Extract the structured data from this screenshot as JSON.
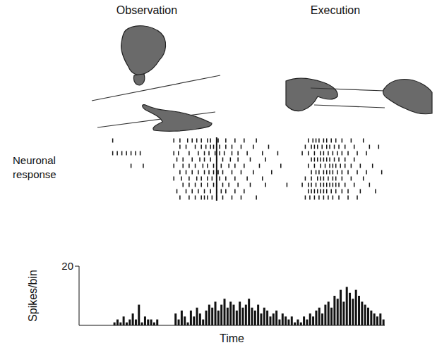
{
  "panel_titles": [
    "Observation",
    "Execution"
  ],
  "row_label": "Neuronal response",
  "chart_data": {
    "type": "histogram",
    "x_label": "Time",
    "y_label": "Spikes/bin",
    "bins": [
      0,
      1,
      2,
      3,
      4,
      5,
      6,
      7,
      8,
      9,
      10,
      11,
      12,
      13,
      14,
      15,
      16,
      17,
      18,
      19,
      20,
      21,
      22,
      23,
      24,
      25,
      26,
      27,
      28,
      29,
      30,
      31,
      32,
      33,
      34,
      35,
      36,
      37,
      38,
      39,
      40,
      41,
      42,
      43,
      44,
      45,
      46,
      47,
      48,
      49,
      50,
      51,
      52,
      53,
      54,
      55,
      56,
      57,
      58,
      59,
      60,
      61,
      62,
      63,
      64,
      65,
      66,
      67,
      68,
      69,
      70,
      71,
      72,
      73,
      74,
      75,
      76,
      77,
      78,
      79,
      80,
      81,
      82,
      83,
      84,
      85,
      86,
      87,
      88,
      89,
      90,
      91,
      92,
      93,
      94,
      95,
      96,
      97,
      98,
      99,
      100
    ],
    "values": [
      0,
      0,
      0,
      0,
      0,
      0,
      0,
      0,
      0,
      0,
      0,
      1,
      2,
      1,
      3,
      1,
      2,
      4,
      2,
      7,
      1,
      3,
      2,
      2,
      1,
      2,
      0,
      0,
      0,
      0,
      0,
      4,
      2,
      5,
      3,
      1,
      5,
      3,
      6,
      4,
      2,
      5,
      7,
      6,
      8,
      5,
      7,
      9,
      6,
      8,
      7,
      5,
      8,
      6,
      7,
      9,
      6,
      5,
      7,
      4,
      6,
      5,
      3,
      4,
      5,
      2,
      4,
      3,
      2,
      3,
      1,
      2,
      1,
      3,
      2,
      4,
      3,
      5,
      6,
      4,
      7,
      8,
      6,
      10,
      9,
      12,
      8,
      13,
      11,
      9,
      12,
      10,
      8,
      7,
      6,
      5,
      4,
      3,
      4,
      2
    ],
    "color": "#111111",
    "xlim": [
      0,
      100
    ],
    "ylim": [
      0,
      20
    ],
    "yticks": [
      20
    ],
    "tick_labels": "y",
    "event": 45,
    "raster": [
      [
        11,
        31,
        33,
        35.5,
        37,
        38.5,
        40,
        42,
        43,
        45.5,
        48,
        51,
        54,
        58,
        75,
        76.5,
        77.5,
        78.5,
        80,
        81,
        82.5,
        84,
        86,
        89,
        93
      ],
      [
        33,
        35,
        38,
        40,
        41.5,
        43,
        44,
        46,
        48,
        50,
        53,
        57,
        62,
        74,
        76,
        77,
        78,
        79.5,
        81,
        82,
        83.5,
        85,
        87,
        90,
        95,
        98
      ],
      [
        11,
        12.5,
        14,
        15.5,
        17,
        18.5,
        20,
        31,
        32.5,
        36,
        39,
        41,
        42.5,
        44.5,
        46,
        47.5,
        50,
        52,
        55,
        60,
        65,
        73,
        75,
        77,
        79,
        80,
        81.5,
        83,
        84.5,
        86,
        88,
        91,
        94
      ],
      [
        32,
        34,
        37,
        39.5,
        41,
        43,
        45,
        47,
        49.5,
        52,
        56,
        61,
        76,
        77,
        78,
        79,
        80,
        81,
        82,
        83.5,
        85,
        87,
        90
      ],
      [
        17,
        21,
        31,
        34,
        36,
        38,
        40.5,
        42,
        44,
        46.5,
        49,
        51,
        54,
        59,
        66,
        75,
        77,
        79,
        80.5,
        82,
        83,
        84,
        85.5,
        87,
        89,
        92,
        96
      ],
      [
        33,
        35,
        37,
        39,
        41,
        42.5,
        44,
        45.5,
        47,
        50,
        53,
        57,
        63,
        76,
        77.5,
        78.5,
        80,
        81,
        82,
        83,
        84.5,
        86,
        88,
        91,
        94,
        99
      ],
      [
        31,
        33.5,
        36,
        38.5,
        40,
        42,
        43.5,
        46,
        48,
        51,
        55,
        60,
        74,
        76,
        78,
        79,
        80,
        81.5,
        83,
        84,
        86,
        89,
        93
      ],
      [
        34,
        36,
        38,
        40,
        42,
        44,
        45,
        47,
        49,
        52,
        56,
        61,
        68,
        73,
        75,
        76,
        77.5,
        79,
        80,
        81,
        82,
        83,
        84,
        85,
        87,
        90,
        95
      ],
      [
        32,
        35,
        37,
        39,
        41,
        43,
        45,
        46.5,
        48,
        51,
        54,
        75,
        76,
        77,
        78,
        79,
        80,
        81,
        82.5,
        84,
        86,
        88,
        92,
        97
      ],
      [
        33,
        36,
        38,
        40,
        41,
        42,
        43.5,
        45,
        47,
        50,
        53,
        58,
        74,
        75.5,
        77,
        78.5,
        80,
        81.5,
        83,
        85,
        88,
        91
      ]
    ]
  }
}
